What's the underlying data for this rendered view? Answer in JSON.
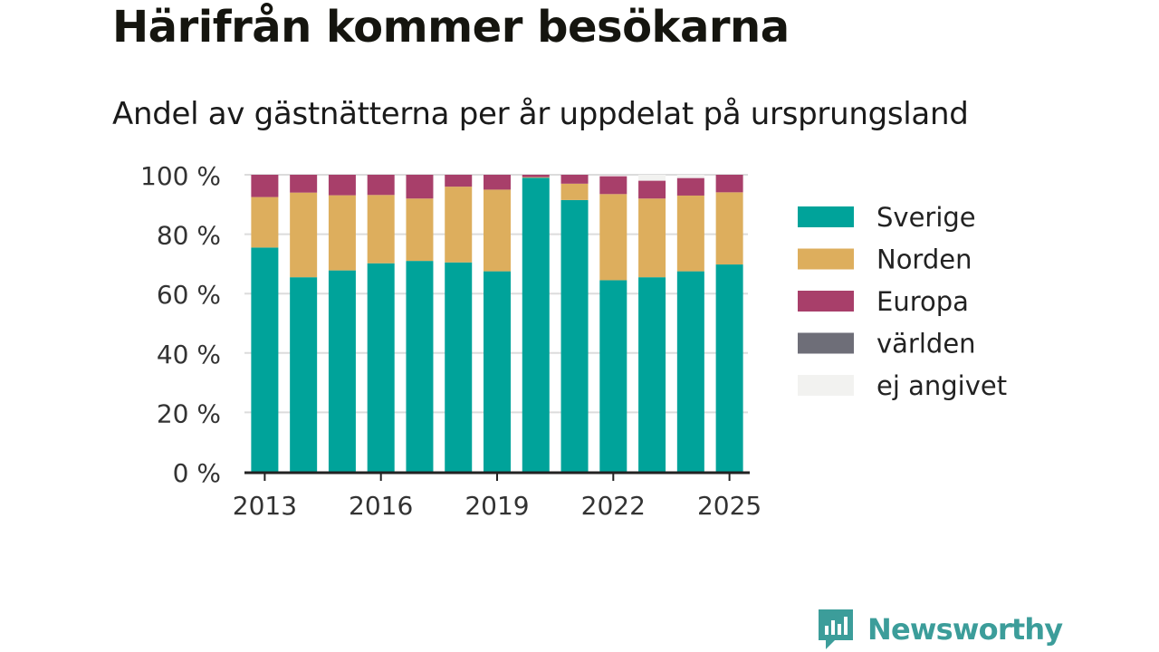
{
  "header": {
    "title": "Härifrån kommer besökarna",
    "subtitle": "Andel av gästnätterna per år uppdelat på ursprungsland"
  },
  "brand": {
    "name": "Newsworthy",
    "color": "#3c9d9a"
  },
  "chart_data": {
    "type": "bar",
    "stacked": true,
    "categories": [
      "2013",
      "2014",
      "2015",
      "2016",
      "2017",
      "2018",
      "2019",
      "2020",
      "2021",
      "2022",
      "2023",
      "2024",
      "2025"
    ],
    "x_tick_labels": [
      "2013",
      "2016",
      "2019",
      "2022",
      "2025"
    ],
    "y_tick_labels": [
      "0 %",
      "20 %",
      "40 %",
      "60 %",
      "80 %",
      "100 %"
    ],
    "ylim": [
      0,
      100
    ],
    "grid": true,
    "legend_position": "right",
    "series": [
      {
        "name": "Sverige",
        "color": "#00a39a",
        "values": [
          75.5,
          65.5,
          67.8,
          70.2,
          71.0,
          70.5,
          67.5,
          99.0,
          91.5,
          64.5,
          65.5,
          67.5,
          69.8
        ]
      },
      {
        "name": "Norden",
        "color": "#ddae5d",
        "values": [
          17.0,
          28.5,
          25.3,
          23.0,
          21.0,
          25.5,
          27.5,
          0.2,
          5.5,
          29.0,
          26.5,
          25.5,
          24.3
        ]
      },
      {
        "name": "Europa",
        "color": "#a83f6a",
        "values": [
          7.5,
          6.0,
          6.9,
          6.8,
          8.0,
          4.0,
          5.0,
          0.8,
          3.0,
          6.0,
          6.0,
          5.9,
          5.9
        ]
      },
      {
        "name": "världen",
        "color": "#6e6e78",
        "values": [
          0,
          0,
          0,
          0,
          0,
          0,
          0,
          0,
          0,
          0,
          0,
          0,
          0
        ]
      },
      {
        "name": "ej angivet",
        "color": "#f2f2f0",
        "values": [
          0,
          0,
          0,
          0,
          0,
          0,
          0,
          0,
          0,
          0,
          2.0,
          1.1,
          0
        ]
      }
    ]
  }
}
